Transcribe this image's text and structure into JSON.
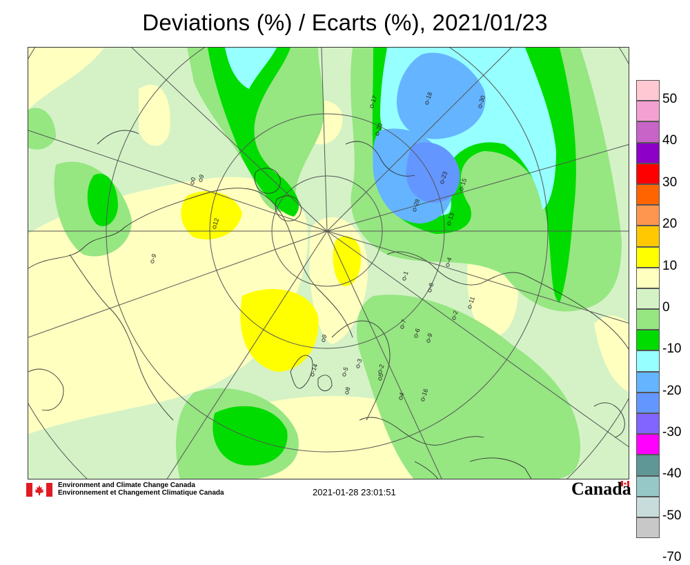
{
  "title": "Deviations (%) / Ecarts (%), 2021/01/23",
  "legend": [
    {
      "label": "50",
      "color": "#ffc8d2"
    },
    {
      "label": "",
      "color": "#f5a0d2"
    },
    {
      "label": "40",
      "color": "#c864c8"
    },
    {
      "label": "",
      "color": "#8c00c8"
    },
    {
      "label": "30",
      "color": "#ff0000"
    },
    {
      "label": "",
      "color": "#ff6400"
    },
    {
      "label": "20",
      "color": "#ff9650"
    },
    {
      "label": "",
      "color": "#ffc800"
    },
    {
      "label": "10",
      "color": "#ffff00"
    },
    {
      "label": "",
      "color": "#ffffc0"
    },
    {
      "label": "0",
      "color": "#d4f2c6"
    },
    {
      "label": "",
      "color": "#96e682"
    },
    {
      "label": "-10",
      "color": "#00dc00"
    },
    {
      "label": "",
      "color": "#96ffff"
    },
    {
      "label": "-20",
      "color": "#64b4ff"
    },
    {
      "label": "",
      "color": "#6496ff"
    },
    {
      "label": "-30",
      "color": "#8264ff"
    },
    {
      "label": "",
      "color": "#ff00ff"
    },
    {
      "label": "-40",
      "color": "#5f9696"
    },
    {
      "label": "",
      "color": "#96c8c8"
    },
    {
      "label": "-50",
      "color": "#c8dcdc"
    },
    {
      "label": "",
      "color": "#c8c8c8"
    },
    {
      "label": "-70",
      "color": ""
    }
  ],
  "station_values": [
    "0",
    "9",
    "-17",
    "-18",
    "-30",
    "-20",
    "-23",
    "-15",
    "-28",
    "-13",
    "-4",
    "-1",
    "-8",
    "-11",
    "-2",
    "-9",
    "-7",
    "-6",
    "12",
    "-9",
    "9",
    "-5",
    "8",
    "-3",
    "5",
    "-2",
    "4",
    "-14",
    "-16"
  ],
  "footer": {
    "org_en": "Environment and Climate Change Canada",
    "org_fr": "Environnement et Changement Climatique Canada",
    "timestamp": "2021-01-28 23:01:51",
    "wordmark": "Canada"
  }
}
